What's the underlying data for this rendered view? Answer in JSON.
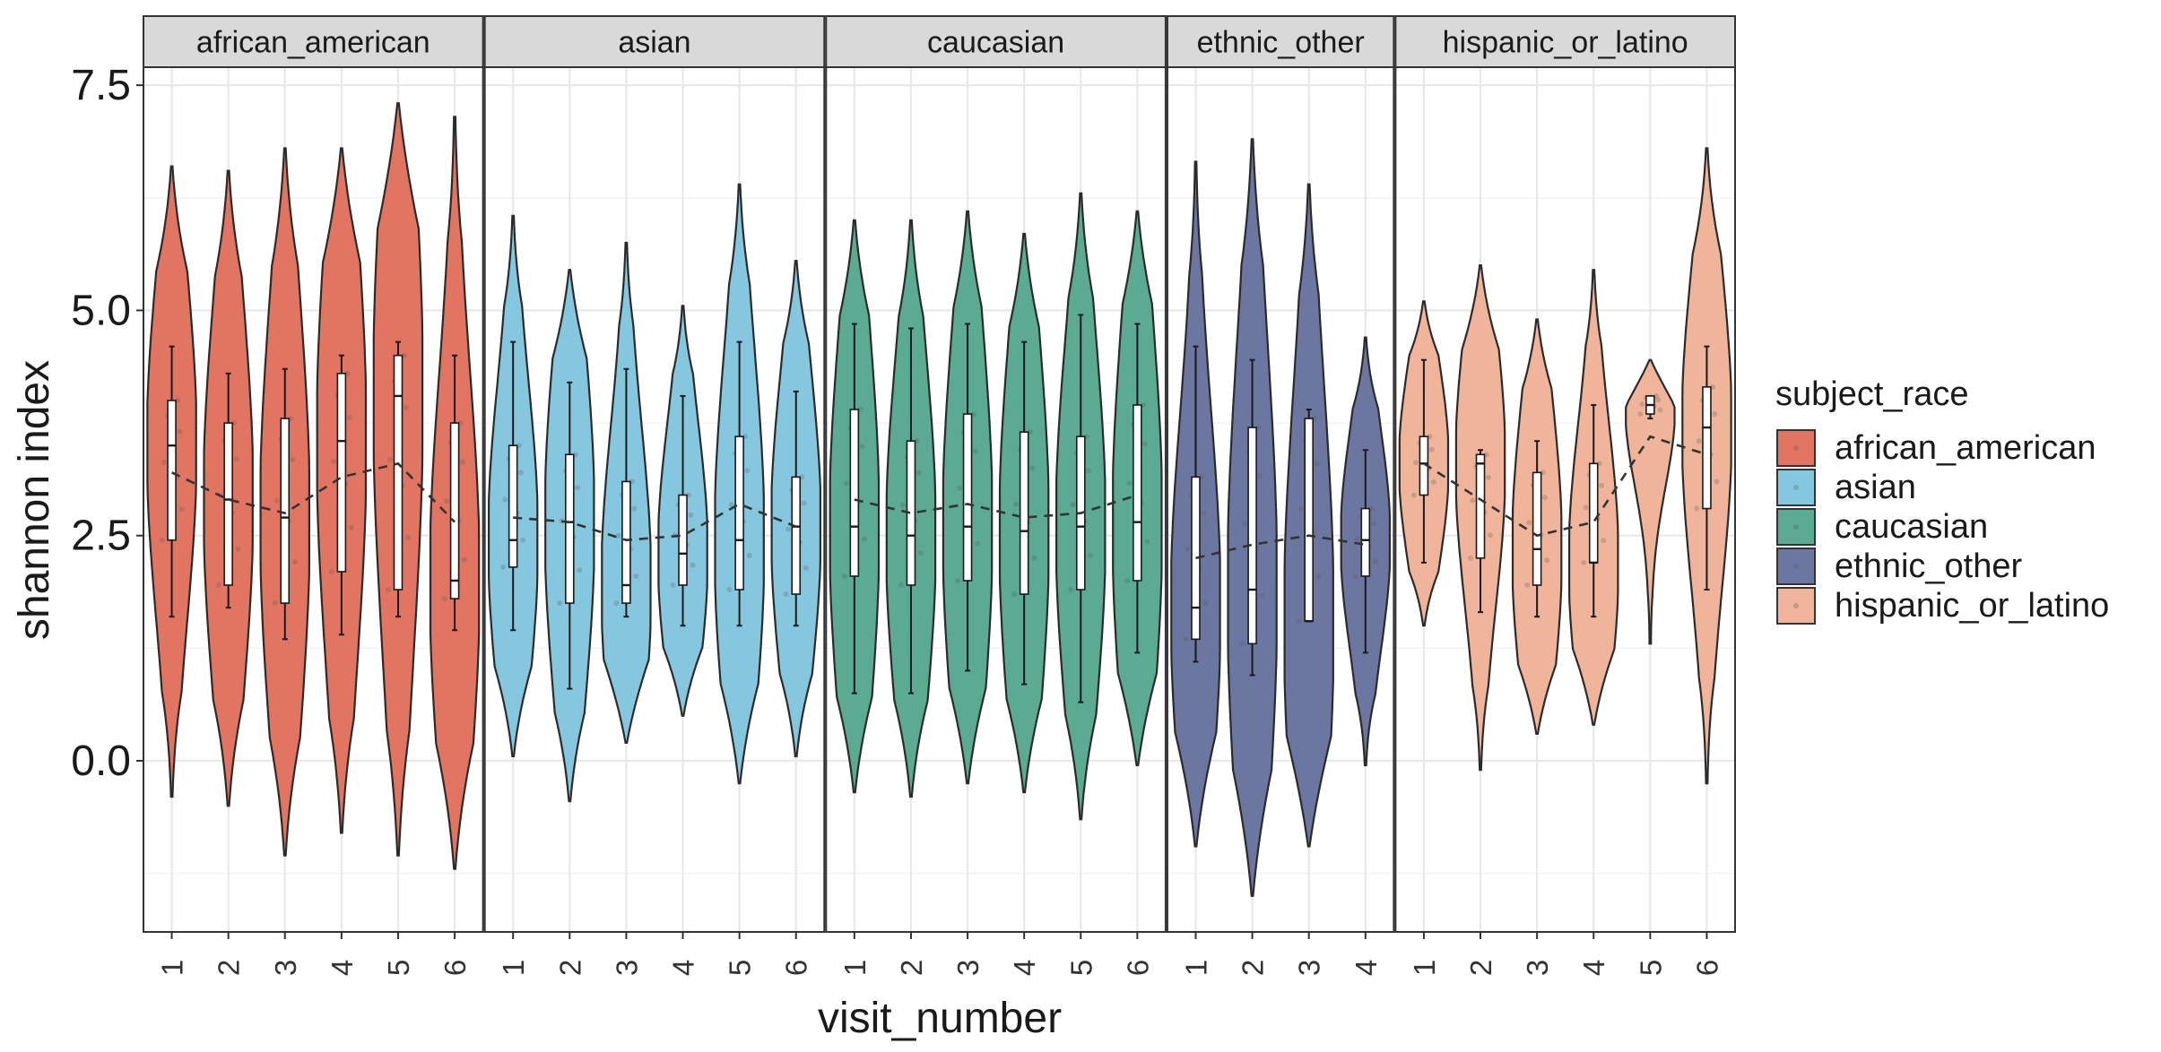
{
  "chart_data": {
    "type": "violin",
    "xlabel": "visit_number",
    "ylabel": "shannon index",
    "ylim": [
      -1.9,
      7.7
    ],
    "y_ticks": [
      "0.0",
      "2.5",
      "5.0",
      "7.5"
    ],
    "y_tick_values": [
      0.0,
      2.5,
      5.0,
      7.5
    ],
    "grid": true,
    "legend": {
      "title": "subject_race",
      "placement": "right",
      "entries": [
        "african_american",
        "asian",
        "caucasian",
        "ethnic_other",
        "hispanic_or_latino"
      ]
    },
    "colors": {
      "african_american": "#e27562",
      "asian": "#85c7de",
      "caucasian": "#5aab91",
      "ethnic_other": "#6b77a1",
      "hispanic_or_latino": "#f0b49a"
    },
    "facets": [
      {
        "name": "african_american",
        "visits": [
          {
            "label": "1",
            "ymin": -0.4,
            "ymax": 6.6,
            "q1": 2.45,
            "median": 3.5,
            "q3": 4.0,
            "wlo": 1.6,
            "whi": 4.6,
            "mean": 3.2
          },
          {
            "label": "2",
            "ymin": -0.5,
            "ymax": 6.55,
            "q1": 1.95,
            "median": 2.9,
            "q3": 3.75,
            "wlo": 1.7,
            "whi": 4.3,
            "mean": 2.9
          },
          {
            "label": "3",
            "ymin": -1.05,
            "ymax": 6.8,
            "q1": 1.75,
            "median": 2.7,
            "q3": 3.8,
            "wlo": 1.35,
            "whi": 4.35,
            "mean": 2.75
          },
          {
            "label": "4",
            "ymin": -0.8,
            "ymax": 6.8,
            "q1": 2.1,
            "median": 3.55,
            "q3": 4.3,
            "wlo": 1.4,
            "whi": 4.5,
            "mean": 3.15
          },
          {
            "label": "5",
            "ymin": -1.05,
            "ymax": 7.3,
            "q1": 1.9,
            "median": 4.05,
            "q3": 4.5,
            "wlo": 1.6,
            "whi": 4.65,
            "mean": 3.3
          },
          {
            "label": "6",
            "ymin": -1.2,
            "ymax": 7.15,
            "q1": 1.8,
            "median": 2.0,
            "q3": 3.75,
            "wlo": 1.45,
            "whi": 4.5,
            "mean": 2.65
          }
        ]
      },
      {
        "name": "asian",
        "visits": [
          {
            "label": "1",
            "ymin": 0.05,
            "ymax": 6.05,
            "q1": 2.15,
            "median": 2.45,
            "q3": 3.5,
            "wlo": 1.45,
            "whi": 4.65,
            "mean": 2.7
          },
          {
            "label": "2",
            "ymin": -0.45,
            "ymax": 5.45,
            "q1": 1.75,
            "median": 2.65,
            "q3": 3.4,
            "wlo": 0.8,
            "whi": 4.2,
            "mean": 2.65
          },
          {
            "label": "3",
            "ymin": 0.2,
            "ymax": 5.75,
            "q1": 1.75,
            "median": 1.95,
            "q3": 3.1,
            "wlo": 1.6,
            "whi": 4.35,
            "mean": 2.45
          },
          {
            "label": "4",
            "ymin": 0.5,
            "ymax": 5.05,
            "q1": 1.95,
            "median": 2.3,
            "q3": 2.95,
            "wlo": 1.5,
            "whi": 4.05,
            "mean": 2.5
          },
          {
            "label": "5",
            "ymin": -0.25,
            "ymax": 6.4,
            "q1": 1.9,
            "median": 2.45,
            "q3": 3.6,
            "wlo": 1.5,
            "whi": 4.65,
            "mean": 2.85
          },
          {
            "label": "6",
            "ymin": 0.05,
            "ymax": 5.55,
            "q1": 1.85,
            "median": 2.6,
            "q3": 3.15,
            "wlo": 1.5,
            "whi": 4.1,
            "mean": 2.6
          }
        ]
      },
      {
        "name": "caucasian",
        "visits": [
          {
            "label": "1",
            "ymin": -0.35,
            "ymax": 6.0,
            "q1": 2.05,
            "median": 2.6,
            "q3": 3.9,
            "wlo": 0.75,
            "whi": 4.85,
            "mean": 2.9
          },
          {
            "label": "2",
            "ymin": -0.4,
            "ymax": 6.0,
            "q1": 1.95,
            "median": 2.5,
            "q3": 3.55,
            "wlo": 0.75,
            "whi": 4.8,
            "mean": 2.75
          },
          {
            "label": "3",
            "ymin": -0.25,
            "ymax": 6.1,
            "q1": 2.0,
            "median": 2.6,
            "q3": 3.85,
            "wlo": 1.0,
            "whi": 4.85,
            "mean": 2.85
          },
          {
            "label": "4",
            "ymin": -0.35,
            "ymax": 5.85,
            "q1": 1.85,
            "median": 2.55,
            "q3": 3.65,
            "wlo": 0.85,
            "whi": 4.65,
            "mean": 2.7
          },
          {
            "label": "5",
            "ymin": -0.65,
            "ymax": 6.3,
            "q1": 1.9,
            "median": 2.6,
            "q3": 3.6,
            "wlo": 0.65,
            "whi": 4.95,
            "mean": 2.75
          },
          {
            "label": "6",
            "ymin": -0.05,
            "ymax": 6.1,
            "q1": 2.0,
            "median": 2.65,
            "q3": 3.95,
            "wlo": 1.2,
            "whi": 4.85,
            "mean": 2.95
          }
        ]
      },
      {
        "name": "ethnic_other",
        "visits": [
          {
            "label": "1",
            "ymin": -0.95,
            "ymax": 6.65,
            "q1": 1.35,
            "median": 1.7,
            "q3": 3.15,
            "wlo": 1.1,
            "whi": 4.6,
            "mean": 2.25
          },
          {
            "label": "2",
            "ymin": -1.5,
            "ymax": 6.9,
            "q1": 1.3,
            "median": 1.9,
            "q3": 3.7,
            "wlo": 0.95,
            "whi": 4.45,
            "mean": 2.4
          },
          {
            "label": "3",
            "ymin": -0.95,
            "ymax": 6.4,
            "q1": 1.55,
            "median": 1.55,
            "q3": 3.8,
            "wlo": 1.55,
            "whi": 3.9,
            "mean": 2.5
          },
          {
            "label": "4",
            "ymin": -0.05,
            "ymax": 4.7,
            "q1": 2.05,
            "median": 2.45,
            "q3": 2.8,
            "wlo": 1.2,
            "whi": 3.45,
            "mean": 2.4
          }
        ]
      },
      {
        "name": "hispanic_or_latino",
        "visits": [
          {
            "label": "1",
            "ymin": 1.5,
            "ymax": 5.1,
            "q1": 2.95,
            "median": 3.3,
            "q3": 3.6,
            "wlo": 2.2,
            "whi": 4.45,
            "mean": 3.3
          },
          {
            "label": "2",
            "ymin": -0.1,
            "ymax": 5.5,
            "q1": 2.25,
            "median": 3.3,
            "q3": 3.4,
            "wlo": 1.65,
            "whi": 3.45,
            "mean": 2.9
          },
          {
            "label": "3",
            "ymin": 0.3,
            "ymax": 4.9,
            "q1": 1.95,
            "median": 2.35,
            "q3": 3.2,
            "wlo": 1.6,
            "whi": 3.55,
            "mean": 2.5
          },
          {
            "label": "4",
            "ymin": 0.4,
            "ymax": 5.45,
            "q1": 2.2,
            "median": 2.2,
            "q3": 3.3,
            "wlo": 1.6,
            "whi": 3.95,
            "mean": 2.65
          },
          {
            "label": "5",
            "ymin": 1.3,
            "ymax": 4.45,
            "q1": 3.85,
            "median": 3.95,
            "q3": 4.05,
            "wlo": 3.8,
            "whi": 4.05,
            "mean": 3.6
          },
          {
            "label": "6",
            "ymin": -0.25,
            "ymax": 6.8,
            "q1": 2.8,
            "median": 3.7,
            "q3": 4.15,
            "wlo": 1.9,
            "whi": 4.6,
            "mean": 3.4
          }
        ]
      }
    ]
  }
}
